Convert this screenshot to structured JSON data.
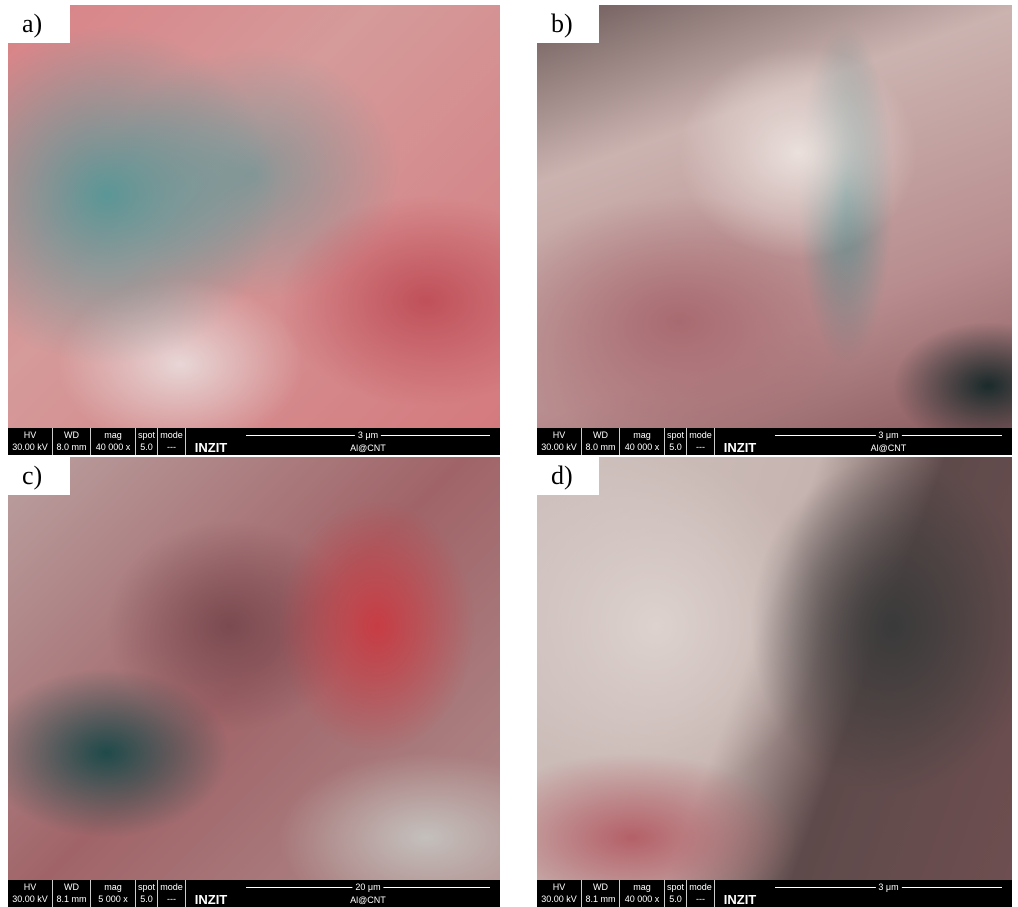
{
  "info_headers": [
    "HV",
    "WD",
    "mag",
    "spot",
    "mode"
  ],
  "logo": "INZIT",
  "panels": [
    {
      "label": "a)",
      "info": [
        "30.00 kV",
        "8.0 mm",
        "40 000 x",
        "5.0",
        "---"
      ],
      "scale": "3 μm",
      "sample": "Al@CNT"
    },
    {
      "label": "b)",
      "info": [
        "30.00 kV",
        "8.0 mm",
        "40 000 x",
        "5.0",
        "---"
      ],
      "scale": "3 μm",
      "sample": "Al@CNT"
    },
    {
      "label": "c)",
      "info": [
        "30.00 kV",
        "8.1 mm",
        "5 000 x",
        "5.0",
        "---"
      ],
      "scale": "20 μm",
      "sample": "Al@CNT"
    },
    {
      "label": "d)",
      "info": [
        "30.00 kV",
        "8.1 mm",
        "40 000 x",
        "5.0",
        "---"
      ],
      "scale": "3 μm"
    }
  ]
}
